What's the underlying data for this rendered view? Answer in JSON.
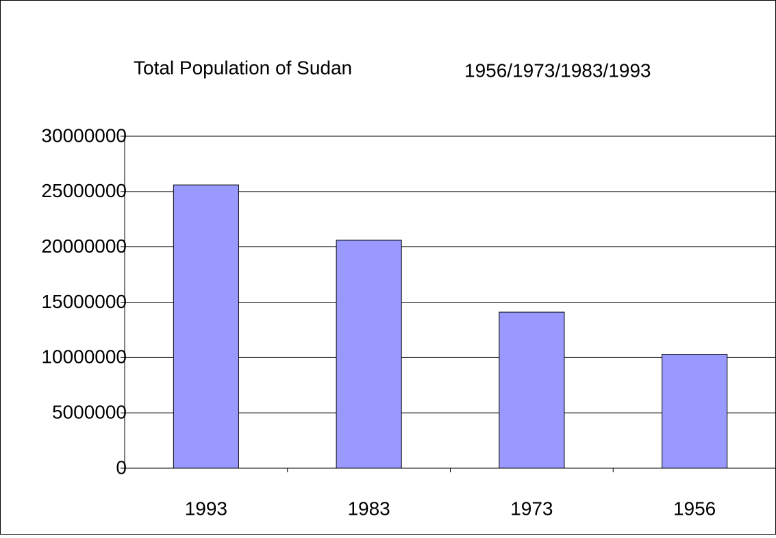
{
  "chart_data": {
    "type": "bar",
    "title": "Total Population of Sudan",
    "subtitle": "1956/1973/1983/1993",
    "categories": [
      "1993",
      "1983",
      "1973",
      "1956"
    ],
    "values": [
      25600000,
      20600000,
      14100000,
      10300000
    ],
    "color": "#9999ff",
    "ylim": [
      0,
      30000000
    ],
    "yticks": [
      0,
      5000000,
      10000000,
      15000000,
      20000000,
      25000000,
      30000000
    ],
    "grid": true
  }
}
